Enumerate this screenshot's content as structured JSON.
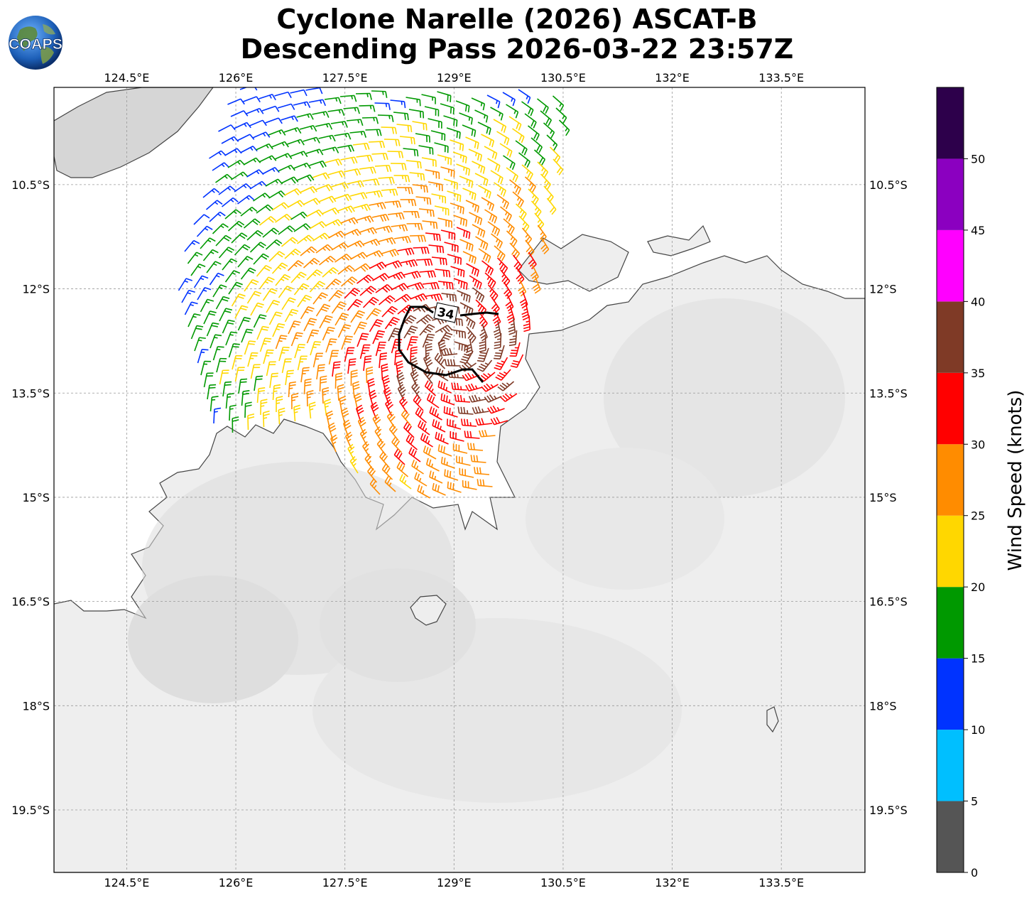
{
  "title": {
    "line1": "Cyclone Narelle (2026) ASCAT-B",
    "line2": "Descending Pass 2026-03-22 23:57Z"
  },
  "logo": {
    "text": "COAPS",
    "icon": "globe-icon"
  },
  "map": {
    "lon_range": [
      123.5,
      134.65
    ],
    "lat_range": [
      -20.4,
      -9.1
    ],
    "lon_ticks": [
      "124.5°E",
      "126°E",
      "127.5°E",
      "129°E",
      "130.5°E",
      "132°E",
      "133.5°E"
    ],
    "lat_ticks": [
      "10.5°S",
      "12°S",
      "13.5°S",
      "15°S",
      "16.5°S",
      "18°S",
      "19.5°S"
    ],
    "gridlines": true,
    "contour_label": "34",
    "contour_knots": 34
  },
  "colorbar": {
    "label": "Wind Speed (knots)",
    "ticks": [
      "0",
      "5",
      "10",
      "15",
      "20",
      "25",
      "30",
      "35",
      "40",
      "45",
      "50"
    ],
    "bins": [
      {
        "min": 0,
        "max": 5,
        "color": "#555555"
      },
      {
        "min": 5,
        "max": 10,
        "color": "#00bfff"
      },
      {
        "min": 10,
        "max": 15,
        "color": "#0033ff"
      },
      {
        "min": 15,
        "max": 20,
        "color": "#009900"
      },
      {
        "min": 20,
        "max": 25,
        "color": "#ffd700"
      },
      {
        "min": 25,
        "max": 30,
        "color": "#ff8c00"
      },
      {
        "min": 30,
        "max": 35,
        "color": "#ff0000"
      },
      {
        "min": 35,
        "max": 40,
        "color": "#7f3a26"
      },
      {
        "min": 40,
        "max": 45,
        "color": "#ff00ff"
      },
      {
        "min": 45,
        "max": 50,
        "color": "#8b00c0"
      },
      {
        "min": 50,
        "max": 55,
        "color": "#2d004b"
      }
    ]
  }
}
